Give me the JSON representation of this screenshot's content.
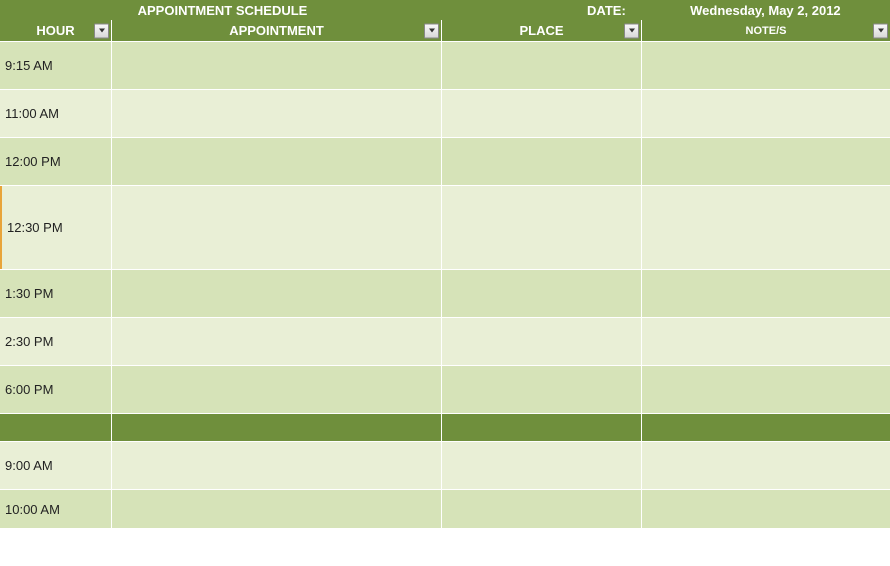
{
  "header": {
    "title": "APPOINTMENT SCHEDULE",
    "date_label": "DATE:",
    "date_value": "Wednesday, May 2, 2012"
  },
  "columns": {
    "hour": "HOUR",
    "appointment": "APPOINTMENT",
    "place": "PLACE",
    "notes": "NOTE/S"
  },
  "rows": [
    {
      "hour": "9:15 AM",
      "appointment": "",
      "place": "",
      "notes": "",
      "style_class": "row-0"
    },
    {
      "hour": "11:00 AM",
      "appointment": "",
      "place": "",
      "notes": "",
      "style_class": "row-1"
    },
    {
      "hour": "12:00 PM",
      "appointment": "",
      "place": "",
      "notes": "",
      "style_class": "row-2"
    },
    {
      "hour": "12:30 PM",
      "appointment": "",
      "place": "",
      "notes": "",
      "style_class": "row-3"
    },
    {
      "hour": "1:30 PM",
      "appointment": "",
      "place": "",
      "notes": "",
      "style_class": "row-4"
    },
    {
      "hour": "2:30 PM",
      "appointment": "",
      "place": "",
      "notes": "",
      "style_class": "row-5"
    },
    {
      "hour": "6:00 PM",
      "appointment": "",
      "place": "",
      "notes": "",
      "style_class": "row-6"
    },
    {
      "hour": "",
      "appointment": "",
      "place": "",
      "notes": "",
      "style_class": "row-7"
    },
    {
      "hour": "9:00 AM",
      "appointment": "",
      "place": "",
      "notes": "",
      "style_class": "row-8"
    },
    {
      "hour": "10:00 AM",
      "appointment": "",
      "place": "",
      "notes": "",
      "style_class": "row-9"
    }
  ],
  "colors": {
    "header_bg": "#6f8f3c",
    "row_light": "#e9efd6",
    "row_dark": "#d6e3b8",
    "separator_row": "#6f8f3c",
    "border": "#ffffff",
    "accent_marker": "#e8a43a",
    "text_header": "#ffffff",
    "text_body": "#222222"
  }
}
